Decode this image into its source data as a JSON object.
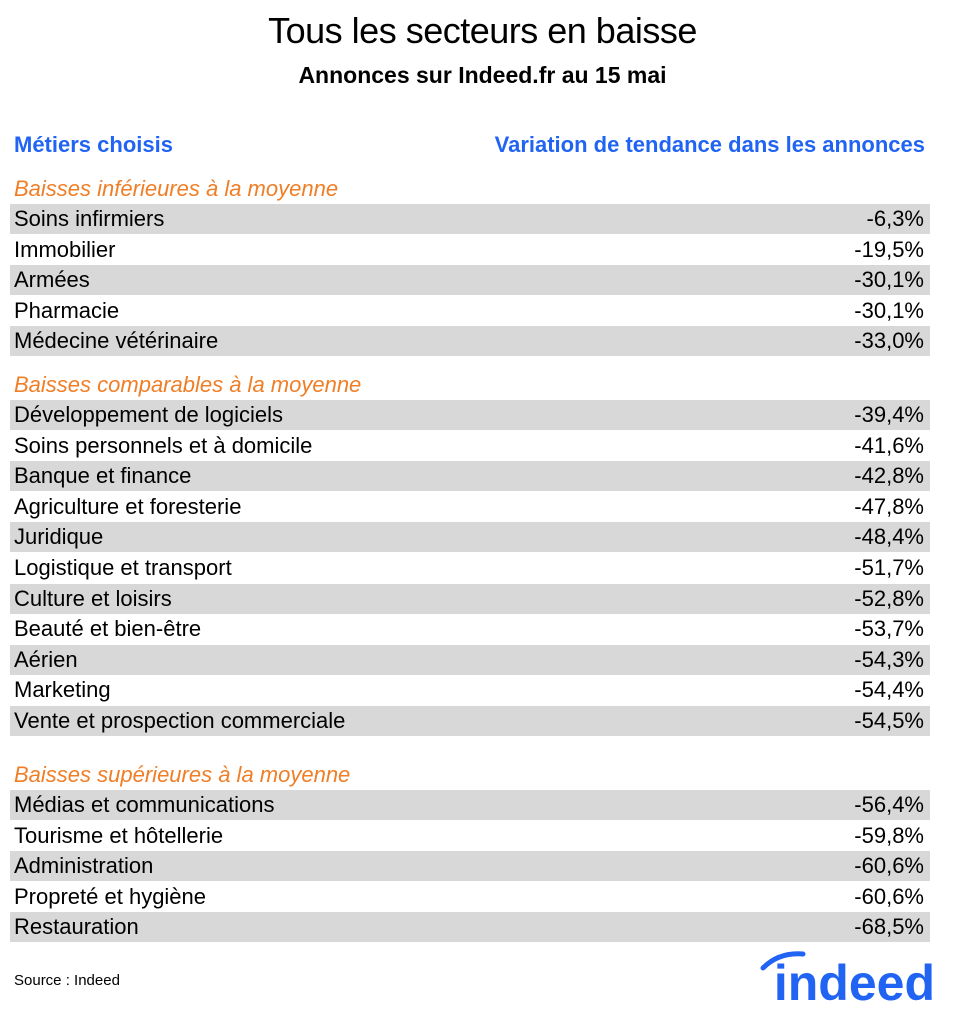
{
  "header": {
    "title": "Tous les secteurs en baisse",
    "subtitle": "Annonces sur Indeed.fr au 15 mai"
  },
  "columns": {
    "left": "Métiers choisis",
    "right": "Variation de tendance dans les annonces"
  },
  "colors": {
    "header_blue": "#2164f3",
    "group_orange": "#f07e26",
    "row_shade": "#d8d8d8",
    "logo_blue": "#2164f3"
  },
  "chart_data": {
    "type": "table",
    "columns": [
      "Métiers choisis",
      "Variation de tendance dans les annonces"
    ],
    "groups": [
      {
        "label": "Baisses inférieures à la moyenne",
        "rows": [
          {
            "name": "Soins infirmiers",
            "value": "-6,3%"
          },
          {
            "name": "Immobilier",
            "value": "-19,5%"
          },
          {
            "name": "Armées",
            "value": "-30,1%"
          },
          {
            "name": "Pharmacie",
            "value": "-30,1%"
          },
          {
            "name": "Médecine vétérinaire",
            "value": "-33,0%"
          }
        ]
      },
      {
        "label": "Baisses comparables à la moyenne",
        "rows": [
          {
            "name": "Développement de logiciels",
            "value": "-39,4%"
          },
          {
            "name": "Soins personnels et à domicile",
            "value": "-41,6%"
          },
          {
            "name": "Banque et finance",
            "value": "-42,8%"
          },
          {
            "name": "Agriculture et foresterie",
            "value": "-47,8%"
          },
          {
            "name": "Juridique",
            "value": "-48,4%"
          },
          {
            "name": "Logistique et transport",
            "value": "-51,7%"
          },
          {
            "name": "Culture et loisirs",
            "value": "-52,8%"
          },
          {
            "name": "Beauté et bien-être",
            "value": "-53,7%"
          },
          {
            "name": "Aérien",
            "value": "-54,3%"
          },
          {
            "name": "Marketing",
            "value": "-54,4%"
          },
          {
            "name": "Vente et prospection commerciale",
            "value": "-54,5%"
          }
        ]
      },
      {
        "label": "Baisses supérieures à la moyenne",
        "rows": [
          {
            "name": "Médias et communications",
            "value": "-56,4%"
          },
          {
            "name": "Tourisme et hôtellerie",
            "value": "-59,8%"
          },
          {
            "name": "Administration",
            "value": "-60,6%"
          },
          {
            "name": "Propreté et hygiène",
            "value": "-60,6%"
          },
          {
            "name": "Restauration",
            "value": "-68,5%"
          }
        ]
      }
    ]
  },
  "footer": {
    "source": "Source : Indeed",
    "logo_text": "indeed"
  }
}
